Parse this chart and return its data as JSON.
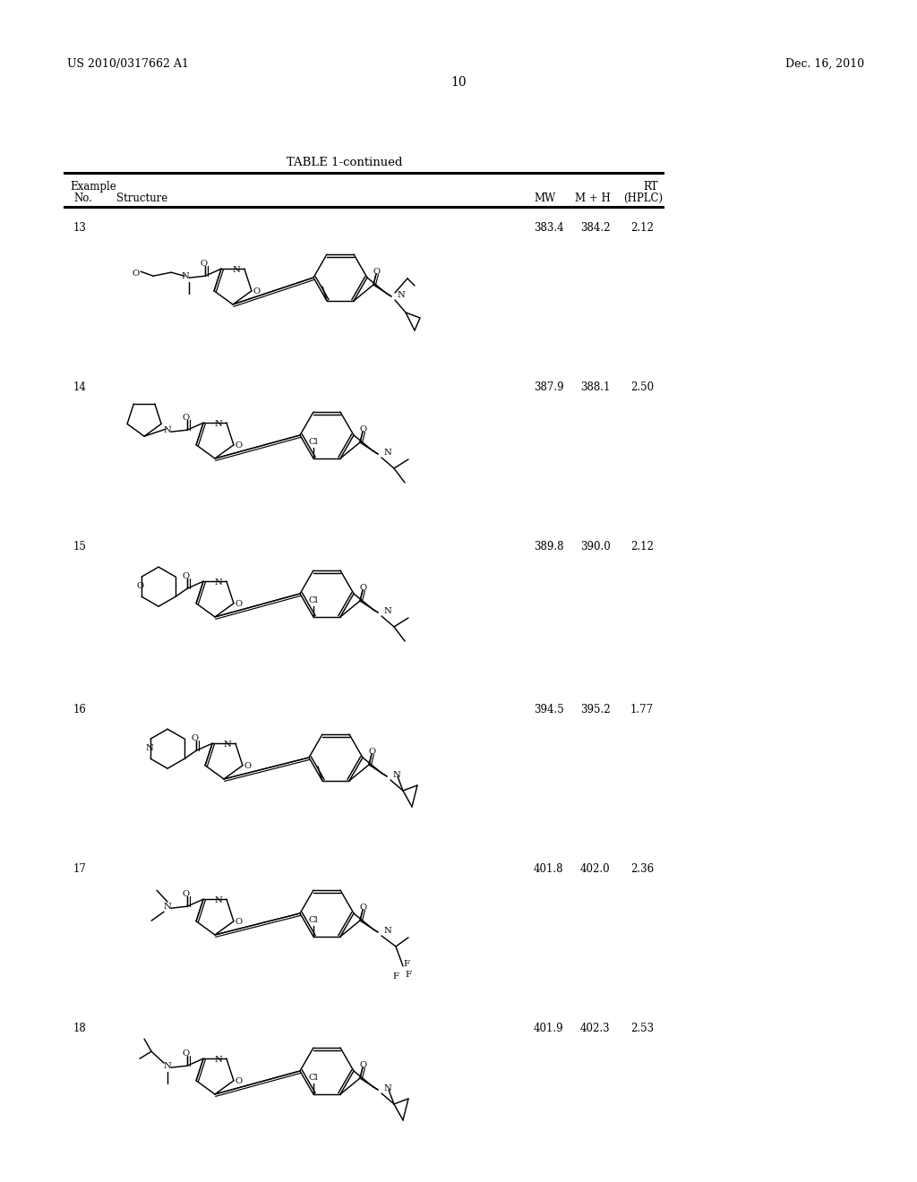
{
  "patent_number": "US 2010/0317662 A1",
  "patent_date": "Dec. 16, 2010",
  "page_number": "10",
  "table_title": "TABLE 1-continued",
  "header1_left": "Example",
  "header1_right": "RT",
  "header2_no": "No.",
  "header2_struct": "Structure",
  "header2_mw": "MW",
  "header2_mh": "M + H",
  "header2_hplc": "(HPLC)",
  "rows": [
    {
      "no": "13",
      "mw": "383.4",
      "mh": "384.2",
      "rt": "2.12"
    },
    {
      "no": "14",
      "mw": "387.9",
      "mh": "388.1",
      "rt": "2.50"
    },
    {
      "no": "15",
      "mw": "389.8",
      "mh": "390.0",
      "rt": "2.12"
    },
    {
      "no": "16",
      "mw": "394.5",
      "mh": "395.2",
      "rt": "1.77"
    },
    {
      "no": "17",
      "mw": "401.8",
      "mh": "402.0",
      "rt": "2.36"
    },
    {
      "no": "18",
      "mw": "401.9",
      "mh": "402.3",
      "rt": "2.53"
    }
  ],
  "bg_color": "#ffffff",
  "line_color": "#000000",
  "font_size_small": 8,
  "font_size_body": 9,
  "font_size_atom": 7
}
